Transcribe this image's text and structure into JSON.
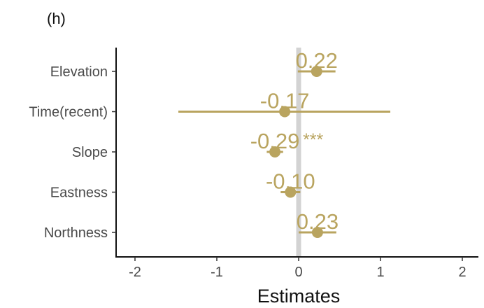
{
  "panel_label": "(h)",
  "chart_data": {
    "type": "scatter",
    "subtype": "coefficient-plot",
    "title": "",
    "xlabel": "Estimates",
    "ylabel": "",
    "xlim": [
      -2.2,
      2.2
    ],
    "xticks": [
      -2,
      -1,
      0,
      1,
      2
    ],
    "xtick_labels": [
      "-2",
      "-1",
      "0",
      "1",
      "2"
    ],
    "reference_line_x": 0,
    "grid": false,
    "legend": "none",
    "point_color": "#b9a45f",
    "reference_line_color": "#d3d3d3",
    "terms": [
      {
        "name": "Elevation",
        "estimate": 0.22,
        "ci_low": -0.01,
        "ci_high": 0.45,
        "label": "0.22",
        "significance": ""
      },
      {
        "name": "Time(recent)",
        "estimate": -0.17,
        "ci_low": -1.47,
        "ci_high": 1.12,
        "label": "-0.17",
        "significance": ""
      },
      {
        "name": "Slope",
        "estimate": -0.29,
        "ci_low": -0.39,
        "ci_high": -0.19,
        "label": "-0.29",
        "significance": "***"
      },
      {
        "name": "Eastness",
        "estimate": -0.1,
        "ci_low": -0.22,
        "ci_high": 0.02,
        "label": "-0.10",
        "significance": ""
      },
      {
        "name": "Northness",
        "estimate": 0.23,
        "ci_low": 0.0,
        "ci_high": 0.46,
        "label": "0.23",
        "significance": ""
      }
    ]
  }
}
